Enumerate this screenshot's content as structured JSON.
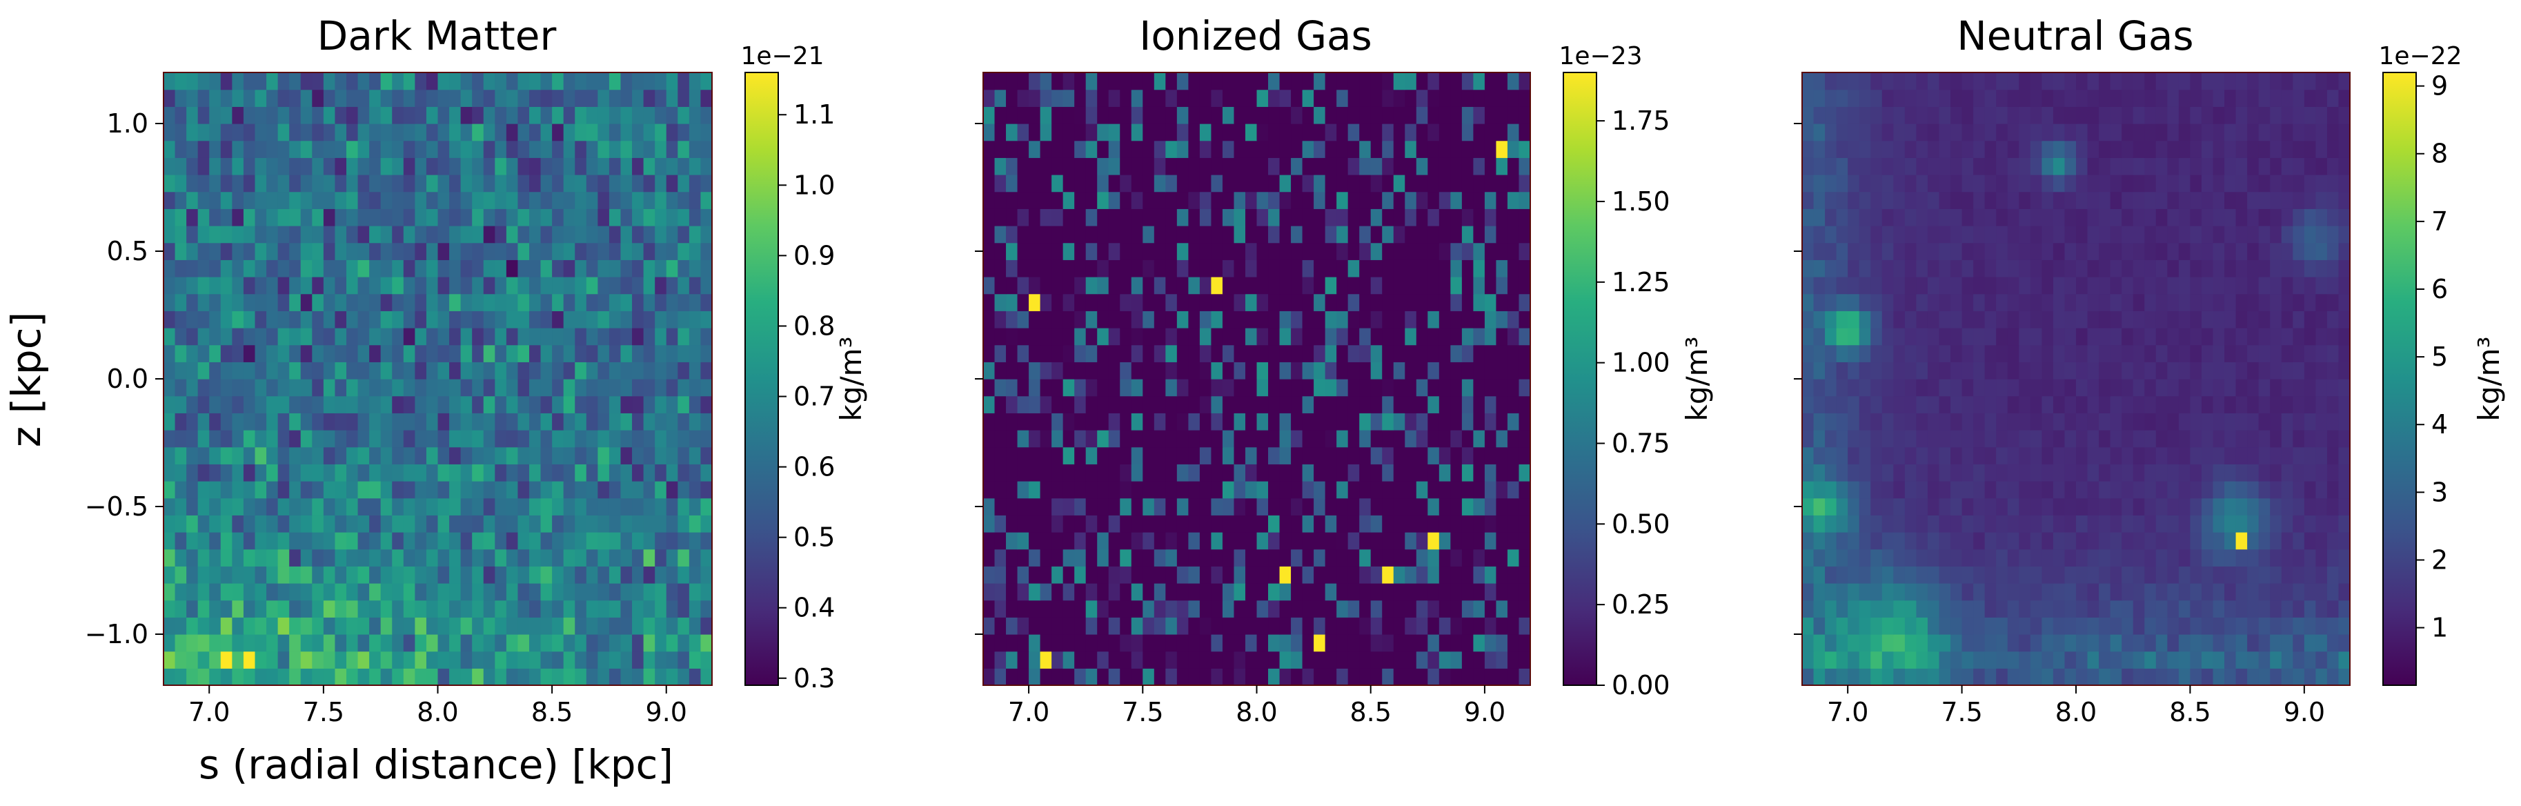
{
  "figure": {
    "ylabel": "z [kpc]",
    "xlabel": "s (radial distance) [kpc]"
  },
  "chart_data": [
    {
      "type": "heatmap",
      "title": "Dark Matter",
      "xlabel": "s (radial distance) [kpc]",
      "ylabel": "z [kpc]",
      "xlim": [
        6.8,
        9.2
      ],
      "ylim": [
        -1.2,
        1.2
      ],
      "xticks": [
        "7.0",
        "7.5",
        "8.0",
        "8.5",
        "9.0"
      ],
      "yticks": [
        "−1.0",
        "−0.5",
        "0.0",
        "0.5",
        "1.0"
      ],
      "grid": [
        48,
        36
      ],
      "colormap": "viridis",
      "colorbar": {
        "label": "kg/m³",
        "offset_text": "1e−21",
        "min": 0.29,
        "max": 1.16,
        "ticks": [
          "0.3",
          "0.4",
          "0.5",
          "0.6",
          "0.7",
          "0.8",
          "0.9",
          "1.0",
          "1.1"
        ],
        "tick_values": [
          0.3,
          0.4,
          0.5,
          0.6,
          0.7,
          0.8,
          0.9,
          1.0,
          1.1
        ]
      },
      "field": {
        "kind": "dark_matter",
        "seed": 11,
        "base": 0.6,
        "noise": 0.15,
        "bottom_gradient": 0.12,
        "highlight_value": 1.16,
        "highlights": [
          [
            7.17,
            -1.07
          ],
          [
            7.05,
            -1.12
          ]
        ]
      }
    },
    {
      "type": "heatmap",
      "title": "Ionized Gas",
      "xlabel": "",
      "ylabel": "",
      "xlim": [
        6.8,
        9.2
      ],
      "ylim": [
        -1.2,
        1.2
      ],
      "xticks": [
        "7.0",
        "7.5",
        "8.0",
        "8.5",
        "9.0"
      ],
      "yticks": [
        "",
        "",
        "",
        "",
        ""
      ],
      "grid": [
        48,
        36
      ],
      "colormap": "viridis",
      "colorbar": {
        "label": "kg/m³",
        "offset_text": "1e−23",
        "min": 0.0,
        "max": 1.9,
        "ticks": [
          "0.00",
          "0.25",
          "0.50",
          "0.75",
          "1.00",
          "1.25",
          "1.50",
          "1.75"
        ],
        "tick_values": [
          0.0,
          0.25,
          0.5,
          0.75,
          1.0,
          1.25,
          1.5,
          1.75
        ]
      },
      "field": {
        "kind": "sparse",
        "seed": 7,
        "fill_prob": 0.33,
        "typical_max": 1.0,
        "highlight_value": 1.9,
        "highlights": [
          [
            7.8,
            0.39
          ],
          [
            9.05,
            0.88
          ],
          [
            8.1,
            -0.78
          ],
          [
            8.58,
            -0.78
          ],
          [
            8.25,
            -1.02
          ],
          [
            8.78,
            -0.63
          ],
          [
            7.02,
            0.3
          ],
          [
            7.07,
            -1.12
          ]
        ]
      }
    },
    {
      "type": "heatmap",
      "title": "Neutral Gas",
      "xlabel": "",
      "ylabel": "",
      "xlim": [
        6.8,
        9.2
      ],
      "ylim": [
        -1.2,
        1.2
      ],
      "xticks": [
        "7.0",
        "7.5",
        "8.0",
        "8.5",
        "9.0"
      ],
      "yticks": [
        "",
        "",
        "",
        "",
        ""
      ],
      "grid": [
        48,
        36
      ],
      "colormap": "viridis",
      "colorbar": {
        "label": "kg/m³",
        "offset_text": "1e−22",
        "min": 0.15,
        "max": 9.2,
        "ticks": [
          "1",
          "2",
          "3",
          "4",
          "5",
          "6",
          "7",
          "8",
          "9"
        ],
        "tick_values": [
          1,
          2,
          3,
          4,
          5,
          6,
          7,
          8,
          9
        ]
      },
      "field": {
        "kind": "filaments",
        "seed": 3,
        "base": 0.9,
        "highlight_value": 9.2,
        "highlights": [
          [
            8.72,
            -0.64
          ]
        ],
        "blobs": [
          [
            7.0,
            0.2,
            0.09,
            5.0
          ],
          [
            7.92,
            0.85,
            0.08,
            3.2
          ],
          [
            8.7,
            -0.55,
            0.14,
            3.0
          ],
          [
            6.9,
            -0.5,
            0.12,
            3.2
          ],
          [
            7.2,
            -1.0,
            0.22,
            3.0
          ],
          [
            9.05,
            0.55,
            0.12,
            1.8
          ]
        ]
      }
    }
  ]
}
